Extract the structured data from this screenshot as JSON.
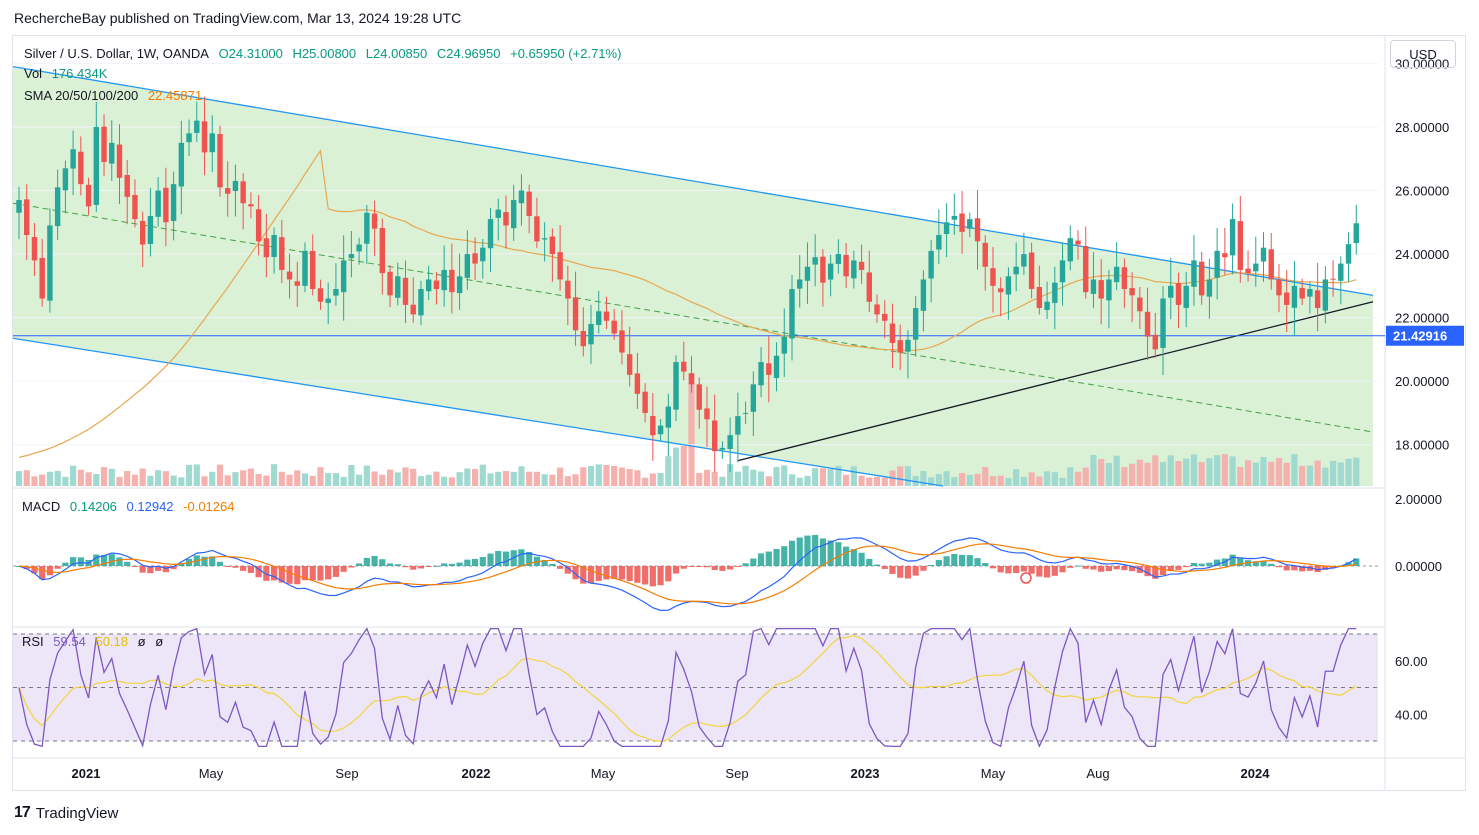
{
  "header": {
    "publisher": "RechercheBay published on TradingView.com, Mar 13, 2024 19:28 UTC"
  },
  "main_legend": {
    "symbol": "Silver / U.S. Dollar, 1W, OANDA",
    "open": "O24.31000",
    "high": "H25.00800",
    "low": "L24.00850",
    "close": "C24.96950",
    "change": "+0.65950 (+2.71%)",
    "vol_label": "Vol",
    "vol_value": "176.434K",
    "sma_label": "SMA 20/50/100/200",
    "sma_value": "22.45871"
  },
  "macd_legend": {
    "label": "MACD",
    "hist": "0.14206",
    "macd": "0.12942",
    "signal": "-0.01264"
  },
  "rsi_legend": {
    "label": "RSI",
    "rsi": "59.54",
    "ma": "50.18",
    "v3": "ø",
    "v4": "ø"
  },
  "currency": "USD",
  "footer": {
    "brand": "TradingView"
  },
  "colors": {
    "up": "#26a69a",
    "down": "#ef5350",
    "channel": "#2196f3",
    "channel_fill": "#d7f0d2",
    "sma": "#e8a64f",
    "macd": "#2962ff",
    "signal": "#f57c00",
    "rsi": "#7e57c2",
    "rsi_ma": "#f2d53c",
    "rsi_bg": "#ece6f8"
  },
  "chart_data": {
    "type": "candlestick",
    "title": "Silver / U.S. Dollar, 1W, OANDA",
    "x_labels": [
      "2021",
      "May",
      "Sep",
      "2022",
      "May",
      "Sep",
      "2023",
      "May",
      "Aug",
      "2024"
    ],
    "y_ticks": [
      "30.00000",
      "28.00000",
      "26.00000",
      "24.00000",
      "22.00000",
      "20.00000",
      "18.00000"
    ],
    "y_range": [
      16.7,
      30.8
    ],
    "price_line": 21.42916,
    "price_line_label": "21.42916",
    "channel_upper": [
      [
        0,
        29.9
      ],
      [
        1360,
        22.7
      ]
    ],
    "channel_lower": [
      [
        0,
        21.35
      ],
      [
        930,
        16.7
      ]
    ],
    "channel_mid": [
      [
        0,
        25.6
      ],
      [
        1360,
        18.4
      ]
    ],
    "trendline": [
      [
        725,
        17.5
      ],
      [
        1360,
        22.5
      ]
    ],
    "close_series": [
      25.7,
      24.6,
      23.8,
      22.6,
      24.9,
      26.1,
      26.7,
      27.3,
      26.2,
      25.5,
      28.0,
      26.9,
      27.5,
      26.4,
      25.8,
      25.1,
      24.3,
      25.2,
      26.0,
      25.0,
      26.2,
      27.5,
      27.8,
      28.2,
      27.2,
      27.8,
      26.1,
      25.9,
      26.3,
      25.6,
      25.5,
      24.4,
      23.9,
      24.6,
      23.5,
      23.2,
      23.0,
      24.1,
      22.9,
      22.5,
      22.6,
      22.9,
      23.8,
      24.0,
      24.3,
      25.3,
      24.8,
      23.4,
      22.7,
      23.3,
      22.4,
      22.1,
      22.9,
      23.2,
      22.9,
      23.5,
      22.8,
      23.3,
      24.0,
      23.7,
      24.2,
      25.1,
      25.4,
      24.9,
      25.7,
      26.0,
      25.2,
      24.4,
      24.5,
      24.0,
      23.2,
      22.6,
      21.6,
      21.1,
      21.8,
      22.2,
      21.9,
      21.5,
      20.9,
      20.2,
      19.6,
      19.0,
      18.3,
      18.6,
      19.2,
      20.6,
      20.3,
      19.9,
      19.1,
      18.8,
      17.8,
      17.9,
      18.3,
      18.9,
      19.0,
      19.9,
      20.6,
      20.2,
      20.8,
      21.4,
      22.9,
      23.2,
      23.6,
      23.9,
      23.1,
      23.7,
      24.0,
      23.3,
      23.8,
      23.5,
      22.5,
      22.1,
      21.9,
      21.2,
      20.9,
      21.3,
      22.3,
      23.2,
      24.1,
      24.6,
      25.0,
      25.2,
      24.7,
      25.1,
      24.4,
      23.6,
      23.0,
      22.8,
      23.3,
      23.6,
      24.0,
      22.9,
      22.3,
      22.5,
      23.1,
      23.8,
      24.5,
      24.3,
      22.8,
      23.2,
      22.6,
      23.2,
      23.6,
      22.9,
      22.7,
      22.2,
      21.4,
      21.0,
      22.6,
      23.0,
      22.4,
      23.0,
      23.8,
      22.7,
      23.2,
      24.1,
      23.9,
      25.1,
      23.5,
      23.4,
      23.7,
      24.2,
      23.2,
      22.7,
      22.4,
      23.0,
      22.6,
      22.9,
      22.3,
      23.2,
      23.2,
      23.7,
      24.31,
      24.97
    ],
    "sma_label": "SMA 20/50/100/200",
    "sma_last": 22.45871,
    "macd": {
      "hist": 0.14206,
      "macd": 0.12942,
      "signal": -0.01264,
      "y_ticks": [
        "2.00000",
        "0.00000"
      ]
    },
    "rsi": {
      "rsi": 59.54,
      "ma": 50.18,
      "y_ticks": [
        "60.00",
        "40.00"
      ],
      "band": [
        30,
        70
      ]
    }
  }
}
